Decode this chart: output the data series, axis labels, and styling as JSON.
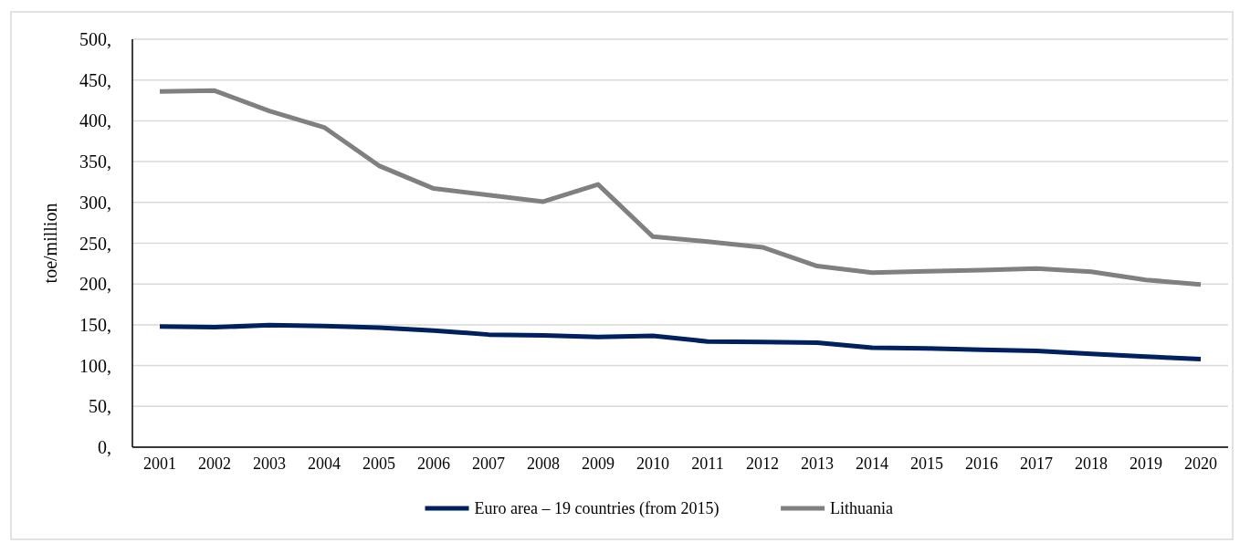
{
  "chart_data": {
    "type": "line",
    "ylabel": "toe/million",
    "categories": [
      "2001",
      "2002",
      "2003",
      "2004",
      "2005",
      "2006",
      "2007",
      "2008",
      "2009",
      "2010",
      "2011",
      "2012",
      "2013",
      "2014",
      "2015",
      "2016",
      "2017",
      "2018",
      "2019",
      "2020"
    ],
    "series": [
      {
        "name": "Euro area – 19 countries (from 2015)",
        "color": "#002060",
        "values": [
          148,
          147,
          149.5,
          148.5,
          146.5,
          143,
          138,
          137,
          135,
          136.5,
          129.5,
          129,
          128,
          122,
          121,
          119.5,
          118,
          114.5,
          111,
          108
        ]
      },
      {
        "name": "Lithuania",
        "color": "#808080",
        "values": [
          436,
          437,
          412,
          392,
          345,
          317,
          309,
          301,
          322,
          258,
          252,
          245,
          222,
          214,
          215.5,
          217,
          219,
          215,
          205,
          199.5
        ]
      }
    ],
    "ylim": [
      0,
      500
    ],
    "yticks": [
      {
        "value": 0,
        "label": "0,"
      },
      {
        "value": 50,
        "label": "50,"
      },
      {
        "value": 100,
        "label": "100,"
      },
      {
        "value": 150,
        "label": "150,"
      },
      {
        "value": 200,
        "label": "200,"
      },
      {
        "value": 250,
        "label": "250,"
      },
      {
        "value": 300,
        "label": "300,"
      },
      {
        "value": 350,
        "label": "350,"
      },
      {
        "value": 400,
        "label": "400,"
      },
      {
        "value": 450,
        "label": "450,"
      },
      {
        "value": 500,
        "label": "500,"
      }
    ],
    "grid": "y",
    "legend": "bottom",
    "marker": "none",
    "line_style": "solid"
  }
}
